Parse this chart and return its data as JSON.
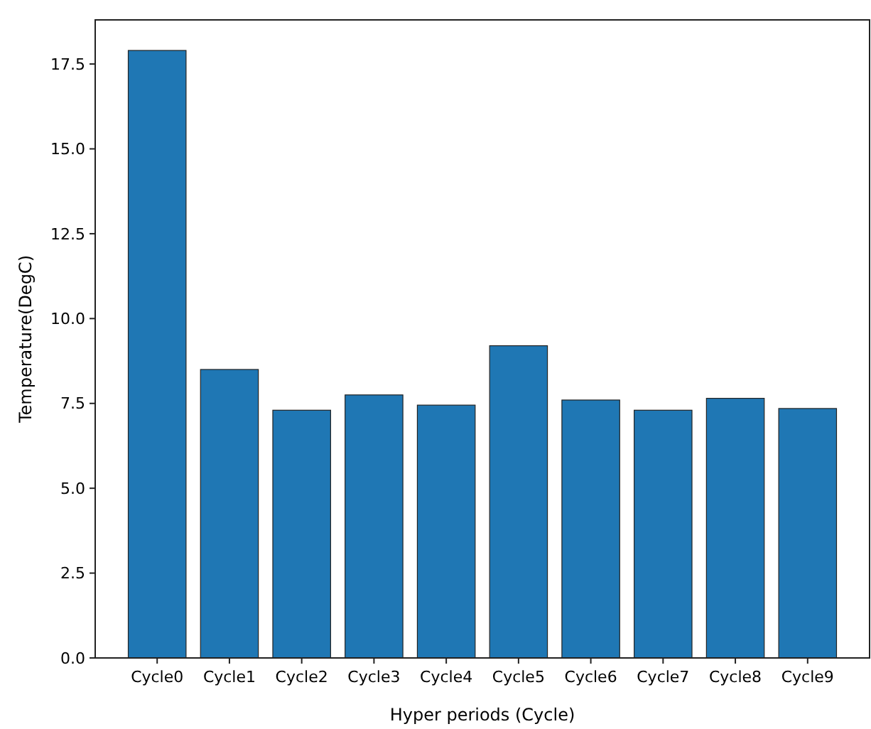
{
  "chart_data": {
    "type": "bar",
    "xlabel": "Hyper periods (Cycle)",
    "ylabel": "Temperature(DegC)",
    "categories": [
      "Cycle0",
      "Cycle1",
      "Cycle2",
      "Cycle3",
      "Cycle4",
      "Cycle5",
      "Cycle6",
      "Cycle7",
      "Cycle8",
      "Cycle9"
    ],
    "values": [
      17.9,
      8.5,
      7.3,
      7.75,
      7.45,
      9.2,
      7.6,
      7.3,
      7.65,
      7.35
    ],
    "color": "#1f77b4",
    "ylim": [
      0,
      18.8
    ],
    "yticks": [
      {
        "value": 0,
        "label": "0.0"
      },
      {
        "value": 2.5,
        "label": "2.5"
      },
      {
        "value": 5,
        "label": "5.0"
      },
      {
        "value": 7.5,
        "label": "7.5"
      },
      {
        "value": 10,
        "label": "10.0"
      },
      {
        "value": 12.5,
        "label": "12.5"
      },
      {
        "value": 15,
        "label": "15.0"
      },
      {
        "value": 17.5,
        "label": "17.5"
      }
    ],
    "grid": false
  }
}
